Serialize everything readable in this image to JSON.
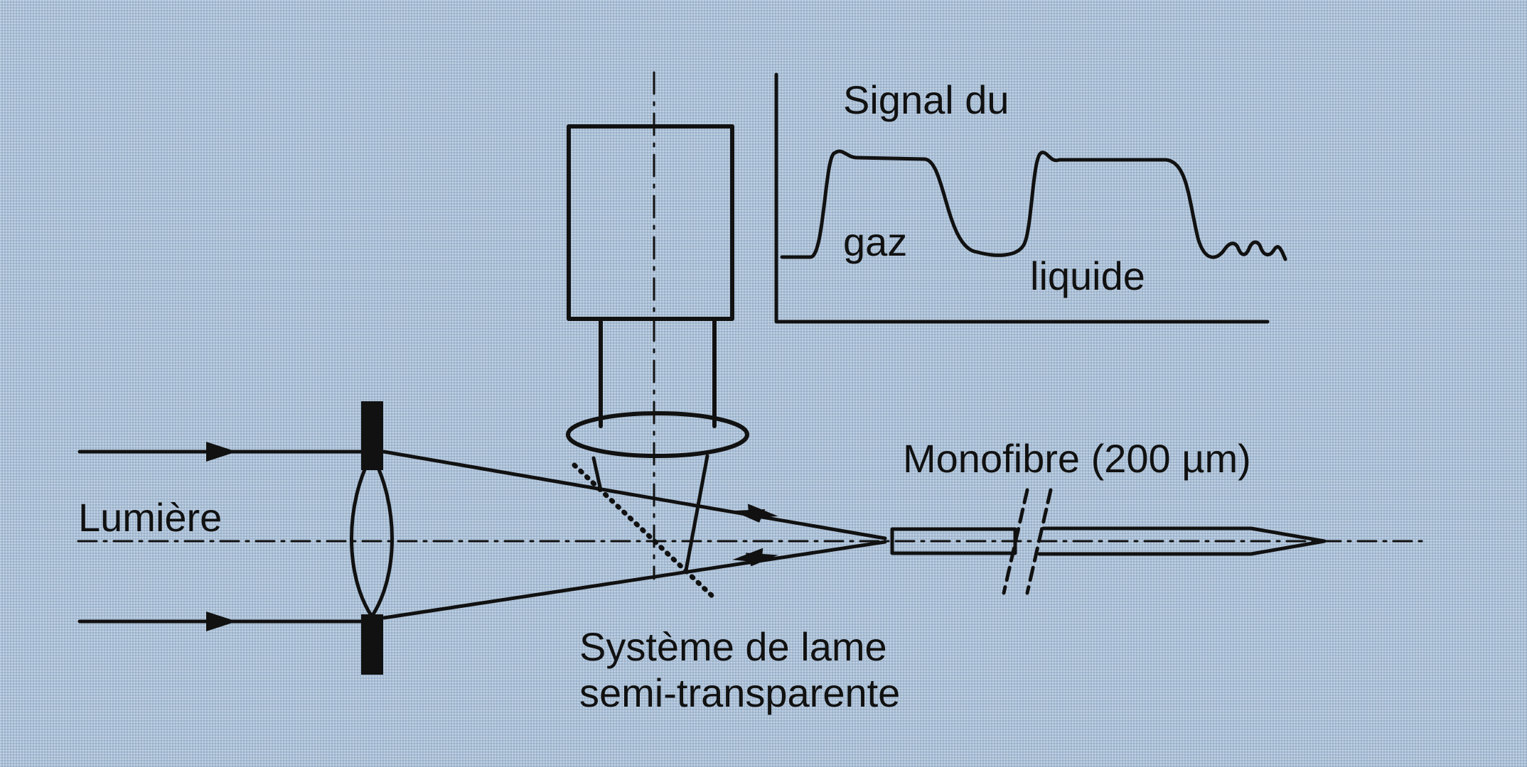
{
  "labels": {
    "signal_title": "Signal du",
    "gas": "gaz",
    "liquid": "liquide",
    "fiber": "Monofibre (200 µm)",
    "light": "Lumière",
    "beamsplitter_line1": "Système de lame",
    "beamsplitter_line2": "semi-transparente"
  },
  "colors": {
    "background": "#a9bfd6",
    "ink": "#111111"
  }
}
